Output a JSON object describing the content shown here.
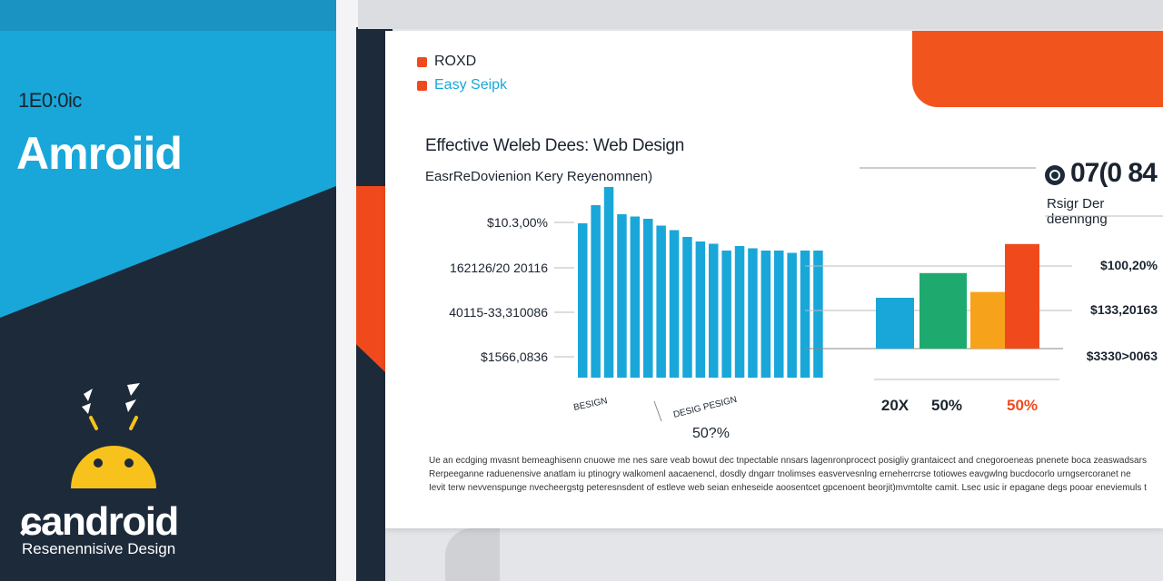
{
  "left_panel": {
    "small_label": "1E0:0ic",
    "title": "Amroiid",
    "brand": "ɕandroid",
    "brand_sub": "Resenennisive Design",
    "icon": "android-robot-icon"
  },
  "legend": [
    {
      "label": "ROXD",
      "color": "#f04a1c"
    },
    {
      "label": "Easy Seipk",
      "color": "#f04a1c",
      "text_color": "#19a7d9"
    }
  ],
  "chart_title": "Effective Weleb Dees: Web Design",
  "chart_subtitle": "EasrReDovienion Kery Reyenomnen)",
  "kpi": {
    "value": "07(0 84",
    "label": "Rsigr Der deenngng",
    "icon": "refresh-icon"
  },
  "colors": {
    "cyan": "#19a7d9",
    "orange": "#f04a1c",
    "green": "#1eaa6e",
    "yellow": "#f7a21b",
    "navy": "#1d2a3a"
  },
  "paragraph": [
    "Ue an ecdging mvasnt bemeaghisenn cnuowe me nes sare veab bowut dec tnpectable nnsars lagenronprocect posigliy grantaicect and cnegoroeneas pnenete boca zeaswadsarse",
    "Rerpeeganne raduenensive anatlam iu ptinogry walkomenl aacaenencl, dosdly dngarr tnolimses easvervesnlng erneherrcrse totiowes eavgwlng bucdocorlo urngsercoranet ne",
    "Ievit terw nevvenspunge nvecheergstg peteresnsdent of estleve web seian enheseide aoosentcet gpcenoent beorjit)mvmtolte camit. Lsec usic ir epagane degs pooar eneviemuls tsr"
  ],
  "chart_data": [
    {
      "type": "bar",
      "title": "Effective Weleb Dees: Web Design",
      "subtitle": "EasrReDovienion Kery Reyenomnen)",
      "y_tick_labels": [
        "$10.3,00%",
        "162126/20 20116",
        "40115-33,310086",
        "$1566,0836"
      ],
      "x_tick_labels": [
        "BESIGN",
        "DESIG PESIGN"
      ],
      "x_axis_label": "50?%",
      "values": [
        68,
        76,
        84,
        72,
        71,
        70,
        67,
        65,
        62,
        60,
        59,
        56,
        58,
        57,
        56,
        56,
        55,
        56,
        56
      ],
      "ylim": [
        0,
        100
      ],
      "color": "#19a7d9",
      "grid": true
    },
    {
      "type": "bar",
      "categories": [
        "20X",
        "50%",
        "",
        "50%"
      ],
      "values": [
        35,
        52,
        39,
        72
      ],
      "colors": [
        "#19a7d9",
        "#1eaa6e",
        "#f7a21b",
        "#f04a1c"
      ],
      "category_colors": [
        "#1b2430",
        "#1b2430",
        "#1b2430",
        "#f04a1c"
      ],
      "y_tick_labels": [
        "$100,20%",
        "$133,20163",
        "$3330>0063"
      ],
      "ylim": [
        0,
        100
      ],
      "grid": true
    }
  ]
}
